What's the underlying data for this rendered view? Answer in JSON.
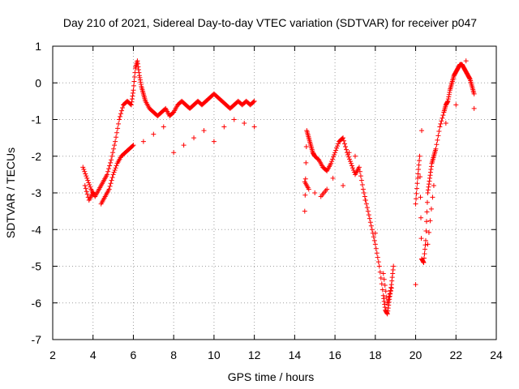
{
  "chart_data": {
    "type": "scatter",
    "title": "Day 210 of 2021, Sidereal Day-to-day VTEC variation (SDTVAR) for receiver p047",
    "xlabel": "GPS time / hours",
    "ylabel": "SDTVAR / TECUs",
    "xlim": [
      2,
      24
    ],
    "ylim": [
      -7,
      1
    ],
    "xticks": [
      2,
      4,
      6,
      8,
      10,
      12,
      14,
      16,
      18,
      20,
      22,
      24
    ],
    "yticks": [
      -7,
      -6,
      -5,
      -4,
      -3,
      -2,
      -1,
      0,
      1
    ],
    "grid": true,
    "marker": "+",
    "marker_color": "#ff0000",
    "series": [
      {
        "name": "SDTVAR",
        "x": [
          3.5,
          3.7,
          3.9,
          4.1,
          4.3,
          4.5,
          4.7,
          4.9,
          5.1,
          5.3,
          5.5,
          5.7,
          5.9,
          6.0,
          6.1,
          6.2,
          6.3,
          6.4,
          6.5,
          6.6,
          6.8,
          7.0,
          7.2,
          7.4,
          7.6,
          7.8,
          8.0,
          8.2,
          8.4,
          8.6,
          8.8,
          9.0,
          9.2,
          9.4,
          9.6,
          9.8,
          10.0,
          10.2,
          10.4,
          10.6,
          10.8,
          11.0,
          11.2,
          11.4,
          11.6,
          11.8,
          12.0,
          3.6,
          3.8,
          4.0,
          4.4,
          4.6,
          4.8,
          5.0,
          5.2,
          5.4,
          5.6,
          5.8,
          6.0,
          6.5,
          7.0,
          7.5,
          8.0,
          8.5,
          9.0,
          9.5,
          10.0,
          10.5,
          11.0,
          11.5,
          12.0,
          14.5,
          14.6,
          14.7,
          14.8,
          14.9,
          15.0,
          15.2,
          15.4,
          15.6,
          15.8,
          16.0,
          16.2,
          16.4,
          16.6,
          16.8,
          17.0,
          17.2,
          17.4,
          17.6,
          17.8,
          18.0,
          18.2,
          18.4,
          18.5,
          18.6,
          18.7,
          18.8,
          18.9,
          14.5,
          14.7,
          15.0,
          15.3,
          15.6,
          15.9,
          16.4,
          16.7,
          17.0,
          17.5,
          18.0,
          18.4,
          18.6,
          18.8,
          20.0,
          20.1,
          20.2,
          20.3,
          20.4,
          20.5,
          20.6,
          20.7,
          20.8,
          20.9,
          21.0,
          21.2,
          21.4,
          21.5,
          21.6,
          21.7,
          21.8,
          21.9,
          22.0,
          22.1,
          22.2,
          22.3,
          22.4,
          22.5,
          22.6,
          22.7,
          22.8,
          22.9,
          20.0,
          20.3,
          20.6,
          20.9,
          21.5,
          22.0,
          22.5,
          22.9
        ],
        "y": [
          -2.3,
          -2.6,
          -2.9,
          -3.1,
          -2.9,
          -2.7,
          -2.5,
          -2.1,
          -1.6,
          -1.0,
          -0.6,
          -0.5,
          -0.6,
          -0.2,
          0.4,
          0.6,
          0.2,
          -0.1,
          -0.3,
          -0.5,
          -0.7,
          -0.8,
          -0.9,
          -0.8,
          -0.7,
          -0.9,
          -0.8,
          -0.6,
          -0.5,
          -0.6,
          -0.7,
          -0.6,
          -0.5,
          -0.6,
          -0.5,
          -0.4,
          -0.3,
          -0.4,
          -0.5,
          -0.6,
          -0.7,
          -0.6,
          -0.5,
          -0.6,
          -0.5,
          -0.6,
          -0.5,
          -2.8,
          -3.2,
          -3.0,
          -3.3,
          -3.1,
          -2.9,
          -2.5,
          -2.2,
          -2.0,
          -1.9,
          -1.8,
          -1.7,
          -1.6,
          -1.4,
          -1.2,
          -1.9,
          -1.7,
          -1.5,
          -1.3,
          -1.6,
          -1.2,
          -1.0,
          -1.1,
          -1.2,
          -3.5,
          -1.3,
          -1.5,
          -1.7,
          -1.9,
          -2.0,
          -2.1,
          -2.3,
          -2.4,
          -2.2,
          -1.9,
          -1.6,
          -1.5,
          -1.9,
          -2.2,
          -2.5,
          -2.3,
          -2.9,
          -3.4,
          -3.9,
          -4.4,
          -5.0,
          -5.8,
          -6.2,
          -6.3,
          -5.9,
          -5.5,
          -5.0,
          -2.7,
          -2.9,
          -3.0,
          -3.1,
          -2.9,
          -2.6,
          -2.8,
          -1.9,
          -2.0,
          -3.2,
          -4.1,
          -5.2,
          -6.0,
          -5.6,
          -3.3,
          -2.6,
          -2.0,
          -4.8,
          -4.9,
          -4.3,
          -3.0,
          -2.6,
          -2.2,
          -2.0,
          -1.8,
          -1.2,
          -0.8,
          -0.6,
          -0.5,
          -0.2,
          0.0,
          0.2,
          0.3,
          0.4,
          0.5,
          0.5,
          0.4,
          0.3,
          0.2,
          0.1,
          -0.1,
          -0.3,
          -5.5,
          -1.3,
          -4.4,
          -2.8,
          -1.1,
          -0.6,
          0.6,
          -0.7
        ]
      }
    ]
  }
}
